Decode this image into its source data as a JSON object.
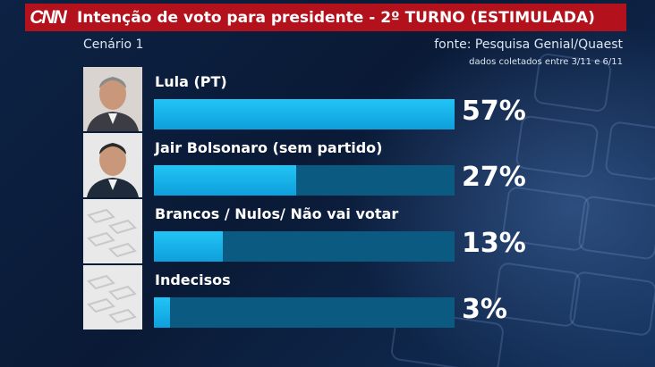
{
  "header": {
    "logo": "CNN",
    "title": "Intenção de voto para presidente - 2º TURNO (ESTIMULADA)"
  },
  "subtitle": {
    "scenario": "Cenário 1",
    "source": "fonte: Pesquisa Genial/Quaest",
    "dates": "dados coletados entre 3/11 e 6/11"
  },
  "chart_data": {
    "type": "bar",
    "orientation": "horizontal",
    "title": "Intenção de voto para presidente - 2º TURNO (ESTIMULADA)",
    "categories": [
      "Lula (PT)",
      "Jair Bolsonaro (sem partido)",
      "Brancos / Nulos/ Não vai votar",
      "Indecisos"
    ],
    "values": [
      57,
      27,
      13,
      3
    ],
    "value_labels": [
      "57%",
      "27%",
      "13%",
      "3%"
    ],
    "xlim": [
      0,
      57
    ],
    "colors": {
      "bar": "#1ab4ec",
      "track": "#0a5a82"
    }
  },
  "photos": [
    "person-photo",
    "person-photo",
    "ballot-icon",
    "ballot-icon"
  ]
}
